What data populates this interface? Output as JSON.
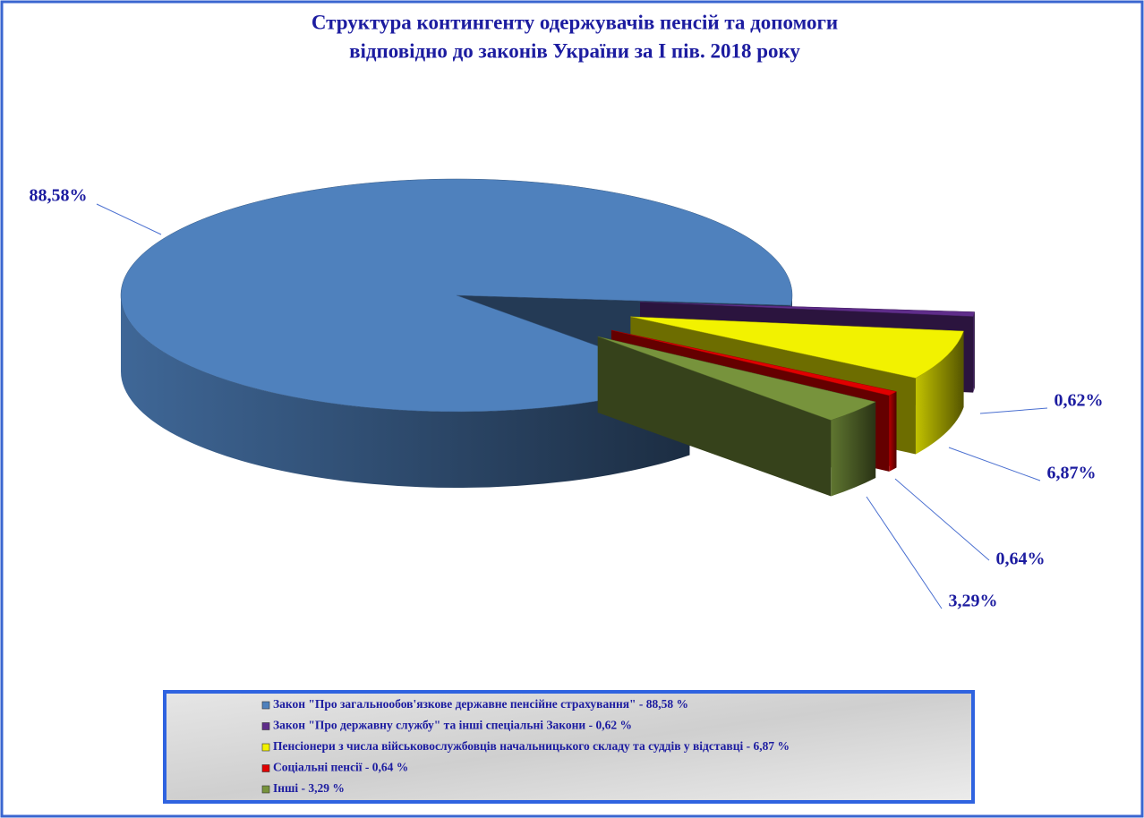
{
  "chart_data": {
    "type": "pie3d",
    "title": [
      "Структура контингенту одержувачів пенсій та допомоги",
      "відповідно до законів України за І пів. 2018 року"
    ],
    "categories": [
      "Закон \"Про загальнообов'язкове державне пенсійне страхування\" - 88,58 %",
      "Закон \"Про державну службу\" та інші спеціальні Закони - 0,62 %",
      "Пенсіонери з числа військовослужбовців начальницького складу та суддів у відставці - 6,87 %",
      "Соціальні пенсії - 0,64 %",
      "Інші  - 3,29 %"
    ],
    "values": [
      88.58,
      0.62,
      6.87,
      0.64,
      3.29
    ],
    "value_labels": [
      "88,58%",
      "0,62%",
      "6,87%",
      "0,64%",
      "3,29%"
    ],
    "colors": [
      "#4f81bd",
      "#5f2d8a",
      "#f2f200",
      "#e00000",
      "#77933c"
    ],
    "legend": "bottom"
  }
}
